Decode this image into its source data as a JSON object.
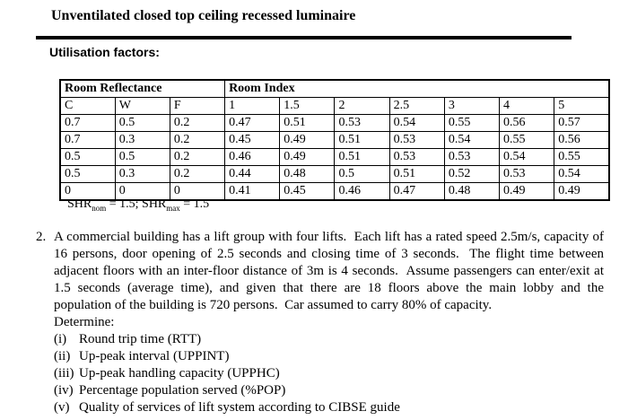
{
  "page": {
    "title": "Unventilated closed top ceiling recessed luminaire",
    "section_label": "Utilisation factors:"
  },
  "table": {
    "group_headers": [
      {
        "label": "Room Reflectance",
        "span": 3
      },
      {
        "label": "Room Index",
        "span": 7
      }
    ],
    "columns": [
      "C",
      "W",
      "F",
      "1",
      "1.5",
      "2",
      "2.5",
      "3",
      "4",
      "5"
    ],
    "rows": [
      [
        "0.7",
        "0.5",
        "0.2",
        "0.47",
        "0.51",
        "0.53",
        "0.54",
        "0.55",
        "0.56",
        "0.57"
      ],
      [
        "0.7",
        "0.3",
        "0.2",
        "0.45",
        "0.49",
        "0.51",
        "0.53",
        "0.54",
        "0.55",
        "0.56"
      ],
      [
        "0.5",
        "0.5",
        "0.2",
        "0.46",
        "0.49",
        "0.51",
        "0.53",
        "0.53",
        "0.54",
        "0.55"
      ],
      [
        "0.5",
        "0.3",
        "0.2",
        "0.44",
        "0.48",
        "0.5",
        "0.51",
        "0.52",
        "0.53",
        "0.54"
      ],
      [
        "0",
        "0",
        "0",
        "0.41",
        "0.45",
        "0.46",
        "0.47",
        "0.48",
        "0.49",
        "0.49"
      ]
    ]
  },
  "shr_note": {
    "t1": "SHR",
    "s1": "nom",
    "t2": " = 1.5; SHR",
    "s2": "max",
    "t3": " = 1.5"
  },
  "question": {
    "number": "2.",
    "body": "A commercial building has a lift group with four lifts.  Each lift has a rated speed 2.5m/s, capacity of 16 persons, door opening of 2.5 seconds and closing time of 3 seconds.  The flight time between adjacent floors with an inter-floor distance of 3m is 4 seconds.  Assume passengers can enter/exit at 1.5 seconds (average time), and given that there are 18 floors above the main lobby and the population of the building is 720 persons.  Car assumed to carry 80% of capacity.",
    "determine_label": "Determine:",
    "items": [
      {
        "marker": "(i)",
        "text": "Round trip time (RTT)"
      },
      {
        "marker": "(ii)",
        "text": "Up-peak interval (UPPINT)"
      },
      {
        "marker": "(iii)",
        "text": "Up-peak handling capacity (UPPHC)"
      },
      {
        "marker": "(iv)",
        "text": "Percentage population served (%POP)"
      },
      {
        "marker": "(v)",
        "text": "Quality of services of lift system according to CIBSE guide"
      }
    ]
  }
}
